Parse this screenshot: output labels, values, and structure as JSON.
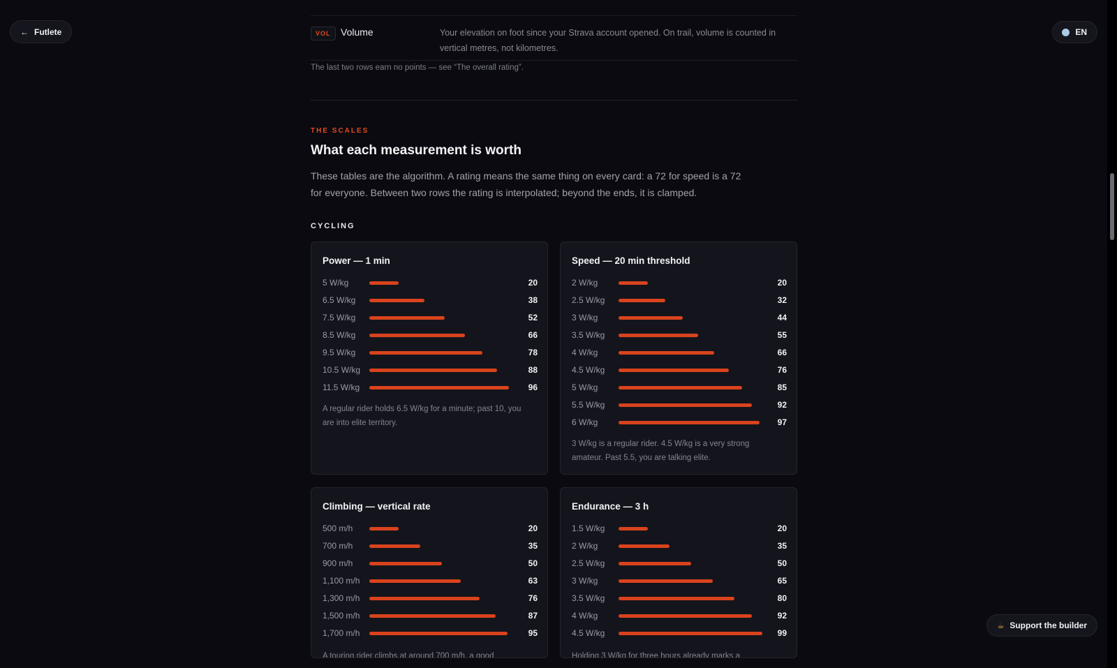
{
  "nav": {
    "back_label": "Futlete",
    "lang_label": "EN",
    "support_label": "Support the builder"
  },
  "volume_row": {
    "badge": "VOL",
    "label": "Volume",
    "description": "Your elevation on foot since your Strava account opened. On trail, volume is counted in vertical metres, not kilometres."
  },
  "rows_note": "The last two rows earn no points — see “The overall rating”.",
  "scales": {
    "eyebrow": "THE SCALES",
    "title": "What each measurement is worth",
    "intro": "These tables are the algorithm. A rating means the same thing on every card: a 72 for speed is a 72 for everyone. Between two rows the rating is interpolated; beyond the ends, it is clamped.",
    "category": "CYCLING"
  },
  "cards": [
    {
      "title": "Power — 1 min",
      "rows": [
        {
          "label": "5 W/kg",
          "value": 20
        },
        {
          "label": "6.5 W/kg",
          "value": 38
        },
        {
          "label": "7.5 W/kg",
          "value": 52
        },
        {
          "label": "8.5 W/kg",
          "value": 66
        },
        {
          "label": "9.5 W/kg",
          "value": 78
        },
        {
          "label": "10.5 W/kg",
          "value": 88
        },
        {
          "label": "11.5 W/kg",
          "value": 96
        }
      ],
      "note": "A regular rider holds 6.5 W/kg for a minute; past 10, you are into elite territory."
    },
    {
      "title": "Speed — 20 min threshold",
      "rows": [
        {
          "label": "2 W/kg",
          "value": 20
        },
        {
          "label": "2.5 W/kg",
          "value": 32
        },
        {
          "label": "3 W/kg",
          "value": 44
        },
        {
          "label": "3.5 W/kg",
          "value": 55
        },
        {
          "label": "4 W/kg",
          "value": 66
        },
        {
          "label": "4.5 W/kg",
          "value": 76
        },
        {
          "label": "5 W/kg",
          "value": 85
        },
        {
          "label": "5.5 W/kg",
          "value": 92
        },
        {
          "label": "6 W/kg",
          "value": 97
        }
      ],
      "note": "3 W/kg is a regular rider. 4.5 W/kg is a very strong amateur. Past 5.5, you are talking elite."
    },
    {
      "title": "Climbing — vertical rate",
      "rows": [
        {
          "label": "500 m/h",
          "value": 20
        },
        {
          "label": "700 m/h",
          "value": 35
        },
        {
          "label": "900 m/h",
          "value": 50
        },
        {
          "label": "1,100 m/h",
          "value": 63
        },
        {
          "label": "1,300 m/h",
          "value": 76
        },
        {
          "label": "1,500 m/h",
          "value": 87
        },
        {
          "label": "1,700 m/h",
          "value": 95
        }
      ],
      "note": "A touring rider climbs at around 700 m/h, a good"
    },
    {
      "title": "Endurance — 3 h",
      "rows": [
        {
          "label": "1.5 W/kg",
          "value": 20
        },
        {
          "label": "2 W/kg",
          "value": 35
        },
        {
          "label": "2.5 W/kg",
          "value": 50
        },
        {
          "label": "3 W/kg",
          "value": 65
        },
        {
          "label": "3.5 W/kg",
          "value": 80
        },
        {
          "label": "4 W/kg",
          "value": 92
        },
        {
          "label": "4.5 W/kg",
          "value": 99
        }
      ],
      "note": "Holding 3 W/kg for three hours already marks a"
    }
  ],
  "colors": {
    "accent": "#e34a1f",
    "bar": "#d9431d",
    "background": "#0a0a10",
    "card": "#14151c"
  },
  "icons": {
    "back": "arrow-left-icon",
    "lang": "globe-dot-icon",
    "support": "coffee-icon"
  }
}
